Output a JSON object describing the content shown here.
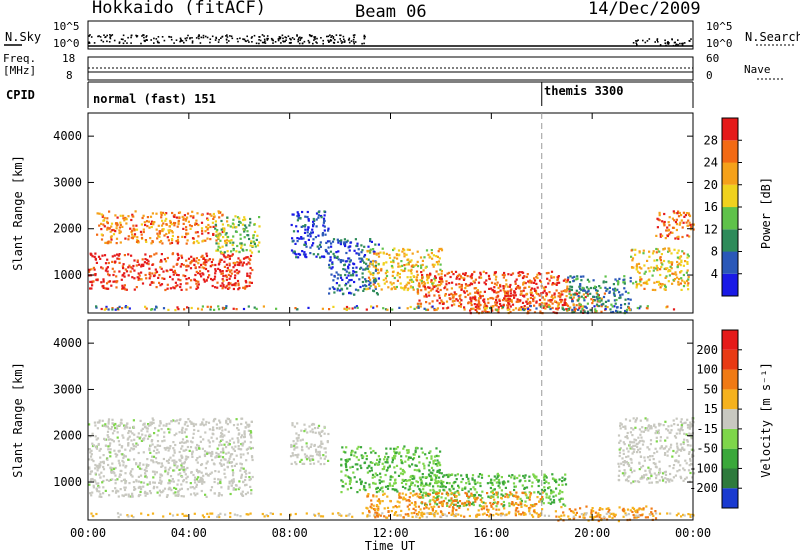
{
  "header": {
    "radar": "Hokkaido (fitACF)",
    "beam": "Beam 06",
    "date": "14/Dec/2009"
  },
  "noise_panel": {
    "left_label": "N.Sky",
    "left_ticks": [
      "10^5",
      "10^0"
    ],
    "right_ticks": [
      "10^5",
      "10^0"
    ],
    "right_label": "N.Search"
  },
  "freq_panel": {
    "label_line1": "Freq.",
    "label_line2": "[MHz]",
    "left_ticks": [
      "18",
      "8"
    ],
    "right_ticks": [
      "60",
      "0"
    ],
    "right_label": "Nave"
  },
  "cpid_panel": {
    "label": "CPID",
    "segments": [
      {
        "name": "normal (fast) 151",
        "start_hour": 0
      },
      {
        "name": "themis 3300",
        "start_hour": 18
      }
    ]
  },
  "chart_data": [
    {
      "type": "heatmap",
      "quantity": "Power",
      "ylabel": "Slant Range [km]",
      "ylim": [
        180,
        4500
      ],
      "yticks": [
        "1000",
        "2000",
        "3000",
        "4000"
      ],
      "xlim": [
        0,
        24
      ],
      "colorbar": {
        "label": "Power [dB]",
        "ticks": [
          "4",
          "8",
          "12",
          "16",
          "20",
          "24",
          "28"
        ],
        "range": [
          0,
          32
        ],
        "colors": [
          "#1a1ae6",
          "#2a58b8",
          "#2e8b5a",
          "#5fc24a",
          "#f0d21e",
          "#f5a11a",
          "#f36a14",
          "#e51a1a"
        ]
      },
      "features": [
        {
          "t0": 0.0,
          "t1": 6.5,
          "r0": 700,
          "r1": 1500,
          "level": 0.92
        },
        {
          "t0": 0.3,
          "t1": 5.5,
          "r0": 1700,
          "r1": 2400,
          "level": 0.75
        },
        {
          "t0": 5.0,
          "t1": 6.8,
          "r0": 1500,
          "r1": 2300,
          "level": 0.45
        },
        {
          "t0": 8.0,
          "t1": 9.5,
          "r0": 1400,
          "r1": 2400,
          "level": 0.12
        },
        {
          "t0": 9.5,
          "t1": 11.5,
          "r0": 600,
          "r1": 1800,
          "level": 0.2
        },
        {
          "t0": 11.0,
          "t1": 14.0,
          "r0": 700,
          "r1": 1600,
          "level": 0.6
        },
        {
          "t0": 13.0,
          "t1": 19.0,
          "r0": 300,
          "r1": 1100,
          "level": 0.85
        },
        {
          "t0": 15.0,
          "t1": 20.5,
          "r0": 200,
          "r1": 700,
          "level": 0.85
        },
        {
          "t0": 19.0,
          "t1": 21.5,
          "r0": 200,
          "r1": 1000,
          "level": 0.3
        },
        {
          "t0": 21.5,
          "t1": 23.8,
          "r0": 700,
          "r1": 1600,
          "level": 0.6
        },
        {
          "t0": 22.5,
          "t1": 24.0,
          "r0": 1800,
          "r1": 2400,
          "level": 0.8
        }
      ]
    },
    {
      "type": "heatmap",
      "quantity": "Velocity",
      "ylabel": "Slant Range [km]",
      "ylim": [
        180,
        4500
      ],
      "yticks": [
        "1000",
        "2000",
        "3000",
        "4000"
      ],
      "xlim": [
        0,
        24
      ],
      "xticks": [
        "00:00",
        "04:00",
        "08:00",
        "12:00",
        "16:00",
        "20:00",
        "00:00"
      ],
      "xlabel": "Time UT",
      "colorbar": {
        "label": "Velocity [m s⁻¹]",
        "ticks": [
          "200",
          "100",
          "50",
          "15",
          "-15",
          "-50",
          "-100",
          "-200"
        ],
        "colors": [
          "#1a3ad0",
          "#2e7a3c",
          "#3aa83a",
          "#7ed64a",
          "#c8c8c0",
          "#f5b21e",
          "#f07a14",
          "#e83a14",
          "#e51a1a"
        ]
      },
      "features": [
        {
          "t0": 0.0,
          "t1": 6.5,
          "r0": 700,
          "r1": 2400,
          "level": "ground"
        },
        {
          "t0": 8.0,
          "t1": 9.5,
          "r0": 1400,
          "r1": 2300,
          "level": "ground"
        },
        {
          "t0": 10.0,
          "t1": 14.0,
          "r0": 800,
          "r1": 1800,
          "level": "slow-toward"
        },
        {
          "t0": 13.0,
          "t1": 19.0,
          "r0": 500,
          "r1": 1200,
          "level": "slow-toward"
        },
        {
          "t0": 11.0,
          "t1": 18.0,
          "r0": 250,
          "r1": 800,
          "level": "slow-away"
        },
        {
          "t0": 21.0,
          "t1": 24.0,
          "r0": 1000,
          "r1": 2400,
          "level": "ground"
        },
        {
          "t0": 18.5,
          "t1": 22.5,
          "r0": 180,
          "r1": 500,
          "level": "slow-away"
        }
      ]
    }
  ],
  "marker_hour": 18
}
